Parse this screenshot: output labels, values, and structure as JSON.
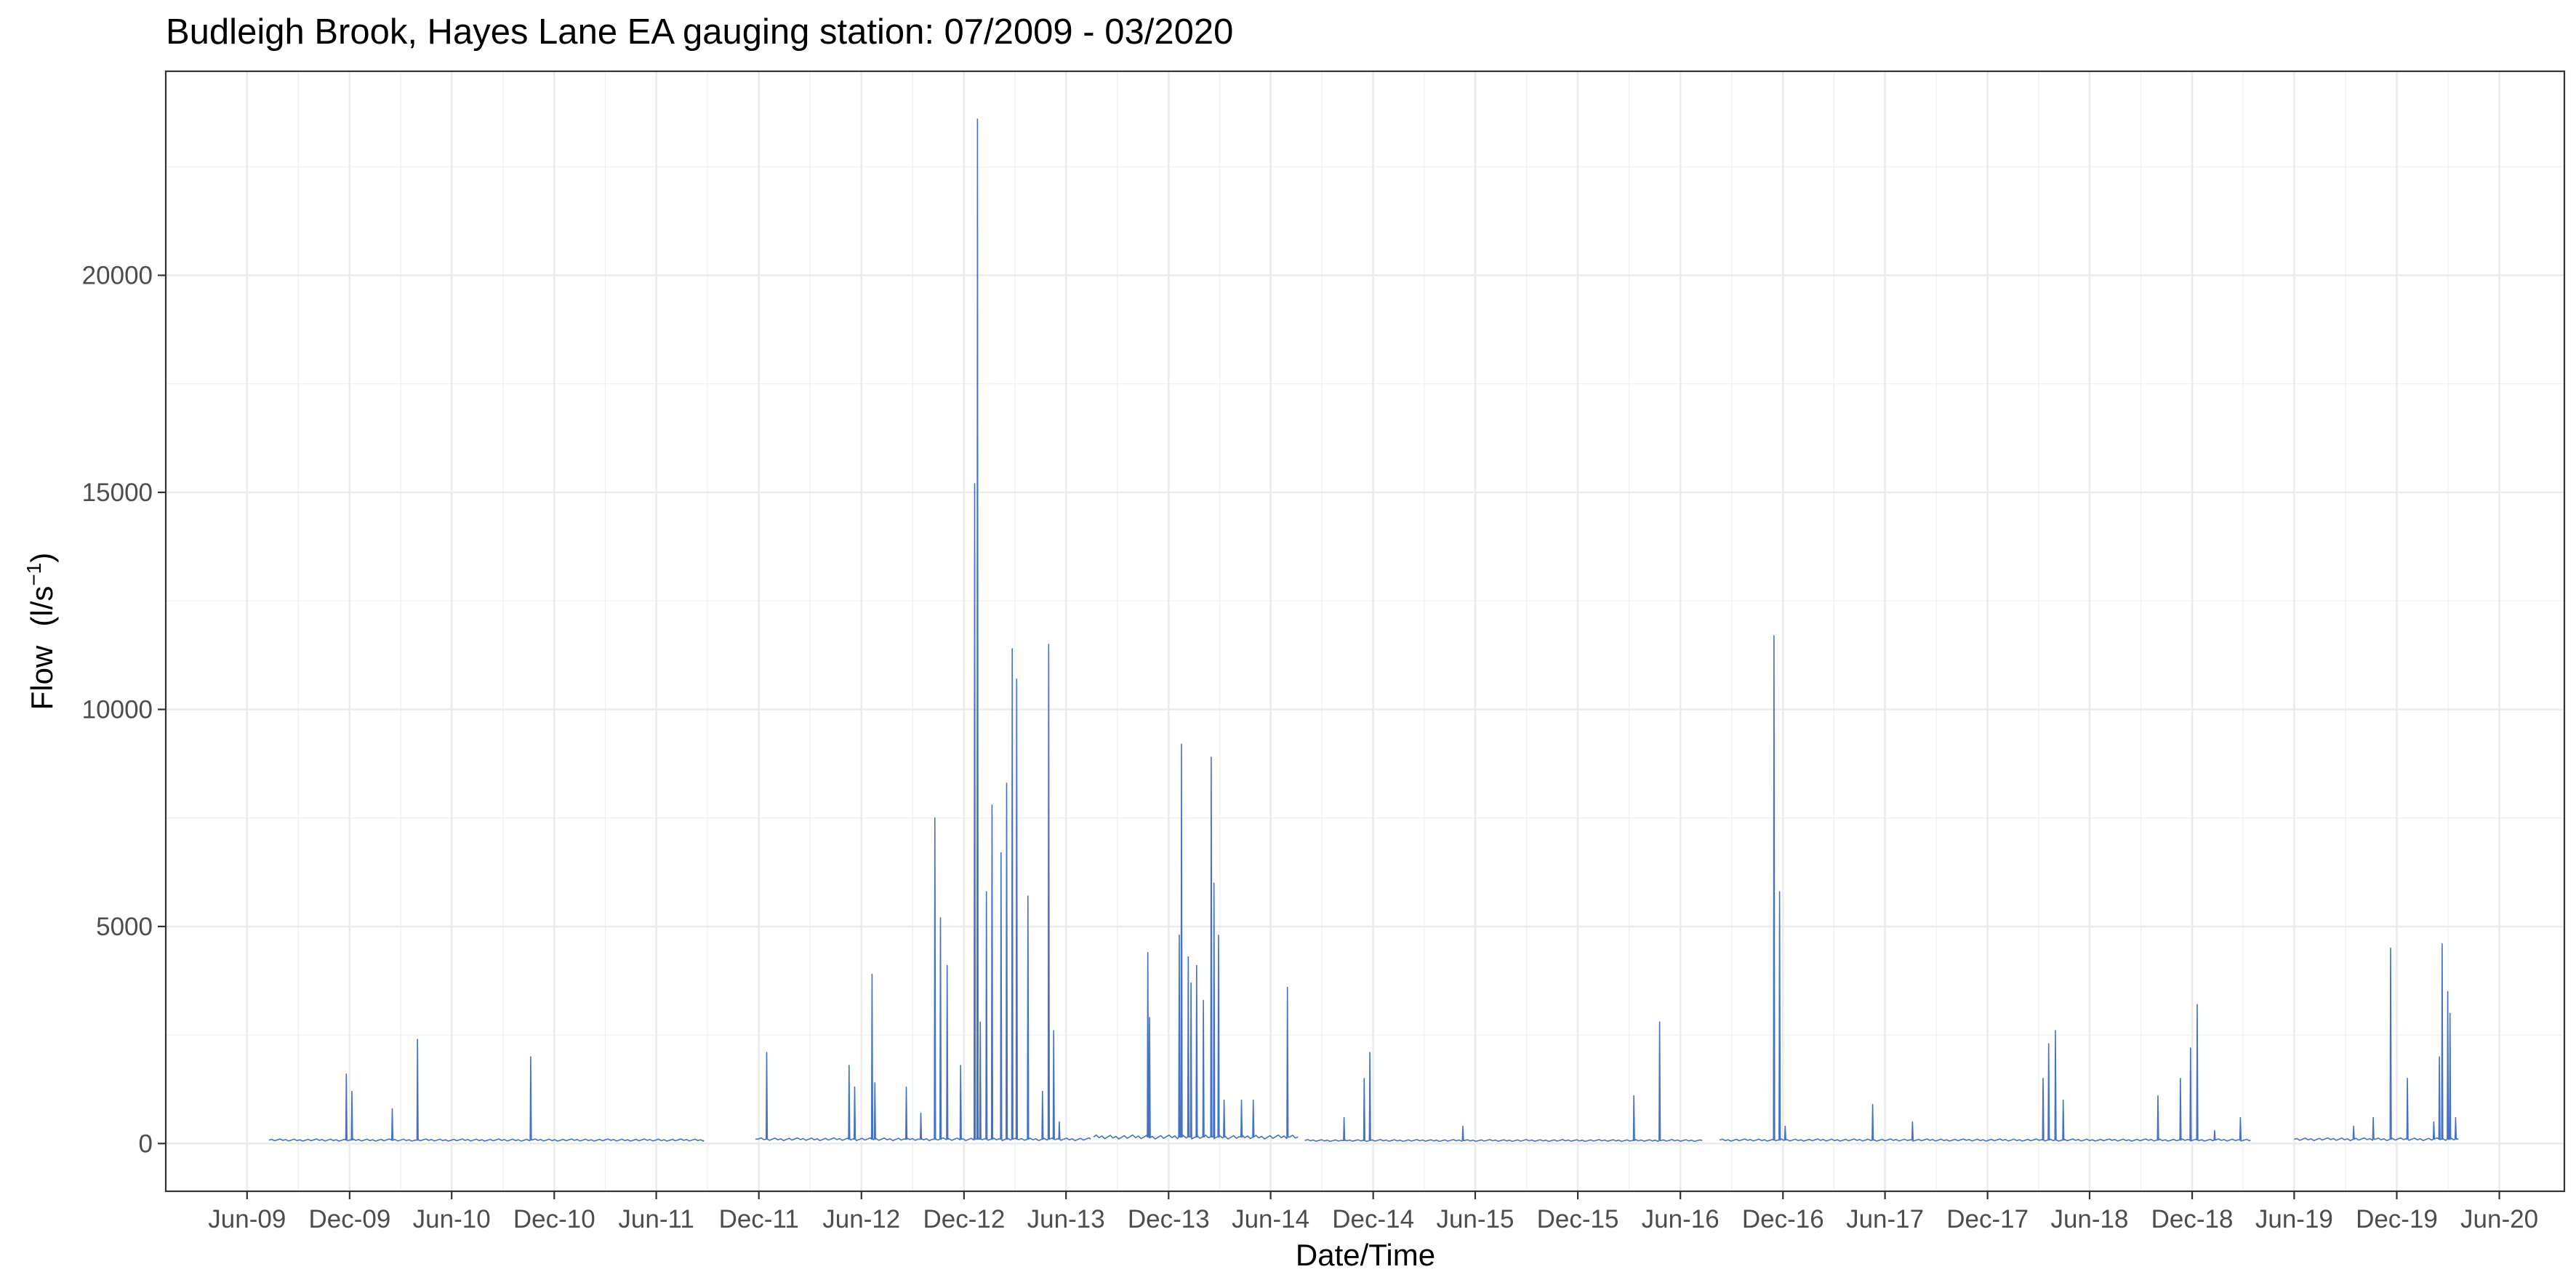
{
  "chart_data": {
    "type": "line",
    "title": "Budleigh Brook, Hayes Lane EA gauging station: 07/2009 - 03/2020",
    "xlabel": "Date/Time",
    "ylabel_main": "Flow",
    "ylabel_unit_base": "(l/s",
    "ylabel_unit_exp": "−1",
    "ylabel_unit_close": ")",
    "x_range": [
      "2009-01-07",
      "2020-09-25"
    ],
    "y_range": [
      -1100,
      24700
    ],
    "x_ticks": [
      {
        "date": "2009-06-01",
        "label": "Jun-09"
      },
      {
        "date": "2009-12-01",
        "label": "Dec-09"
      },
      {
        "date": "2010-06-01",
        "label": "Jun-10"
      },
      {
        "date": "2010-12-01",
        "label": "Dec-10"
      },
      {
        "date": "2011-06-01",
        "label": "Jun-11"
      },
      {
        "date": "2011-12-01",
        "label": "Dec-11"
      },
      {
        "date": "2012-06-01",
        "label": "Jun-12"
      },
      {
        "date": "2012-12-01",
        "label": "Dec-12"
      },
      {
        "date": "2013-06-01",
        "label": "Jun-13"
      },
      {
        "date": "2013-12-01",
        "label": "Dec-13"
      },
      {
        "date": "2014-06-01",
        "label": "Jun-14"
      },
      {
        "date": "2014-12-01",
        "label": "Dec-14"
      },
      {
        "date": "2015-06-01",
        "label": "Jun-15"
      },
      {
        "date": "2015-12-01",
        "label": "Dec-15"
      },
      {
        "date": "2016-06-01",
        "label": "Jun-16"
      },
      {
        "date": "2016-12-01",
        "label": "Dec-16"
      },
      {
        "date": "2017-06-01",
        "label": "Jun-17"
      },
      {
        "date": "2017-12-01",
        "label": "Dec-17"
      },
      {
        "date": "2018-06-01",
        "label": "Jun-18"
      },
      {
        "date": "2018-12-01",
        "label": "Dec-18"
      },
      {
        "date": "2019-06-01",
        "label": "Jun-19"
      },
      {
        "date": "2019-12-01",
        "label": "Dec-19"
      },
      {
        "date": "2020-06-01",
        "label": "Jun-20"
      }
    ],
    "y_ticks": [
      {
        "value": 0,
        "label": "0"
      },
      {
        "value": 5000,
        "label": "5000"
      },
      {
        "value": 10000,
        "label": "10000"
      },
      {
        "value": 15000,
        "label": "15000"
      },
      {
        "value": 20000,
        "label": "20000"
      }
    ],
    "grid": true,
    "line_color": "#4472C4",
    "series": [
      {
        "segments": [
          [
            "2009-07-10",
            "2011-08-25",
            80
          ],
          [
            "2011-11-25",
            "2013-07-15",
            100
          ],
          [
            "2013-07-20",
            "2014-07-20",
            150
          ],
          [
            "2014-08-01",
            "2016-07-10",
            70
          ],
          [
            "2016-08-10",
            "2019-03-15",
            80
          ],
          [
            "2019-06-01",
            "2020-03-20",
            100
          ]
        ],
        "peaks": [
          [
            "2009-11-25",
            1600
          ],
          [
            "2009-12-05",
            1200
          ],
          [
            "2010-02-15",
            800
          ],
          [
            "2010-04-01",
            2400
          ],
          [
            "2010-10-20",
            2000
          ],
          [
            "2011-12-15",
            2100
          ],
          [
            "2012-05-10",
            1800
          ],
          [
            "2012-05-20",
            1300
          ],
          [
            "2012-06-20",
            3900
          ],
          [
            "2012-06-25",
            1400
          ],
          [
            "2012-08-20",
            1300
          ],
          [
            "2012-09-15",
            700
          ],
          [
            "2012-10-10",
            7500
          ],
          [
            "2012-10-20",
            5200
          ],
          [
            "2012-11-01",
            4100
          ],
          [
            "2012-11-25",
            1800
          ],
          [
            "2012-12-20",
            15200
          ],
          [
            "2012-12-25",
            23600
          ],
          [
            "2012-12-30",
            2800
          ],
          [
            "2013-01-10",
            5800
          ],
          [
            "2013-01-20",
            7800
          ],
          [
            "2013-02-05",
            6700
          ],
          [
            "2013-02-15",
            8300
          ],
          [
            "2013-02-25",
            11400
          ],
          [
            "2013-03-05",
            10700
          ],
          [
            "2013-03-25",
            5700
          ],
          [
            "2013-04-20",
            1200
          ],
          [
            "2013-05-01",
            11500
          ],
          [
            "2013-05-10",
            2600
          ],
          [
            "2013-05-20",
            500
          ],
          [
            "2013-10-25",
            4400
          ],
          [
            "2013-10-28",
            2900
          ],
          [
            "2013-12-20",
            4800
          ],
          [
            "2013-12-24",
            9200
          ],
          [
            "2014-01-05",
            4300
          ],
          [
            "2014-01-10",
            3700
          ],
          [
            "2014-01-20",
            4100
          ],
          [
            "2014-02-01",
            3300
          ],
          [
            "2014-02-15",
            8900
          ],
          [
            "2014-02-20",
            6000
          ],
          [
            "2014-02-28",
            4800
          ],
          [
            "2014-03-10",
            1000
          ],
          [
            "2014-04-10",
            1000
          ],
          [
            "2014-05-01",
            1000
          ],
          [
            "2014-07-01",
            3600
          ],
          [
            "2014-10-10",
            600
          ],
          [
            "2014-11-15",
            1500
          ],
          [
            "2014-11-25",
            2100
          ],
          [
            "2015-05-10",
            400
          ],
          [
            "2016-03-10",
            1100
          ],
          [
            "2016-04-25",
            2800
          ],
          [
            "2016-11-15",
            11700
          ],
          [
            "2016-11-25",
            5800
          ],
          [
            "2016-12-05",
            400
          ],
          [
            "2017-05-10",
            900
          ],
          [
            "2017-07-20",
            500
          ],
          [
            "2018-03-10",
            1500
          ],
          [
            "2018-03-20",
            2300
          ],
          [
            "2018-04-01",
            2600
          ],
          [
            "2018-04-15",
            1000
          ],
          [
            "2018-10-01",
            1100
          ],
          [
            "2018-11-10",
            1500
          ],
          [
            "2018-11-28",
            2200
          ],
          [
            "2018-12-10",
            3200
          ],
          [
            "2019-01-10",
            300
          ],
          [
            "2019-02-25",
            600
          ],
          [
            "2019-09-15",
            400
          ],
          [
            "2019-10-20",
            600
          ],
          [
            "2019-11-20",
            4500
          ],
          [
            "2019-12-20",
            1500
          ],
          [
            "2020-02-05",
            500
          ],
          [
            "2020-02-15",
            2000
          ],
          [
            "2020-02-20",
            4600
          ],
          [
            "2020-03-01",
            3500
          ],
          [
            "2020-03-05",
            3000
          ],
          [
            "2020-03-15",
            600
          ]
        ]
      }
    ]
  }
}
